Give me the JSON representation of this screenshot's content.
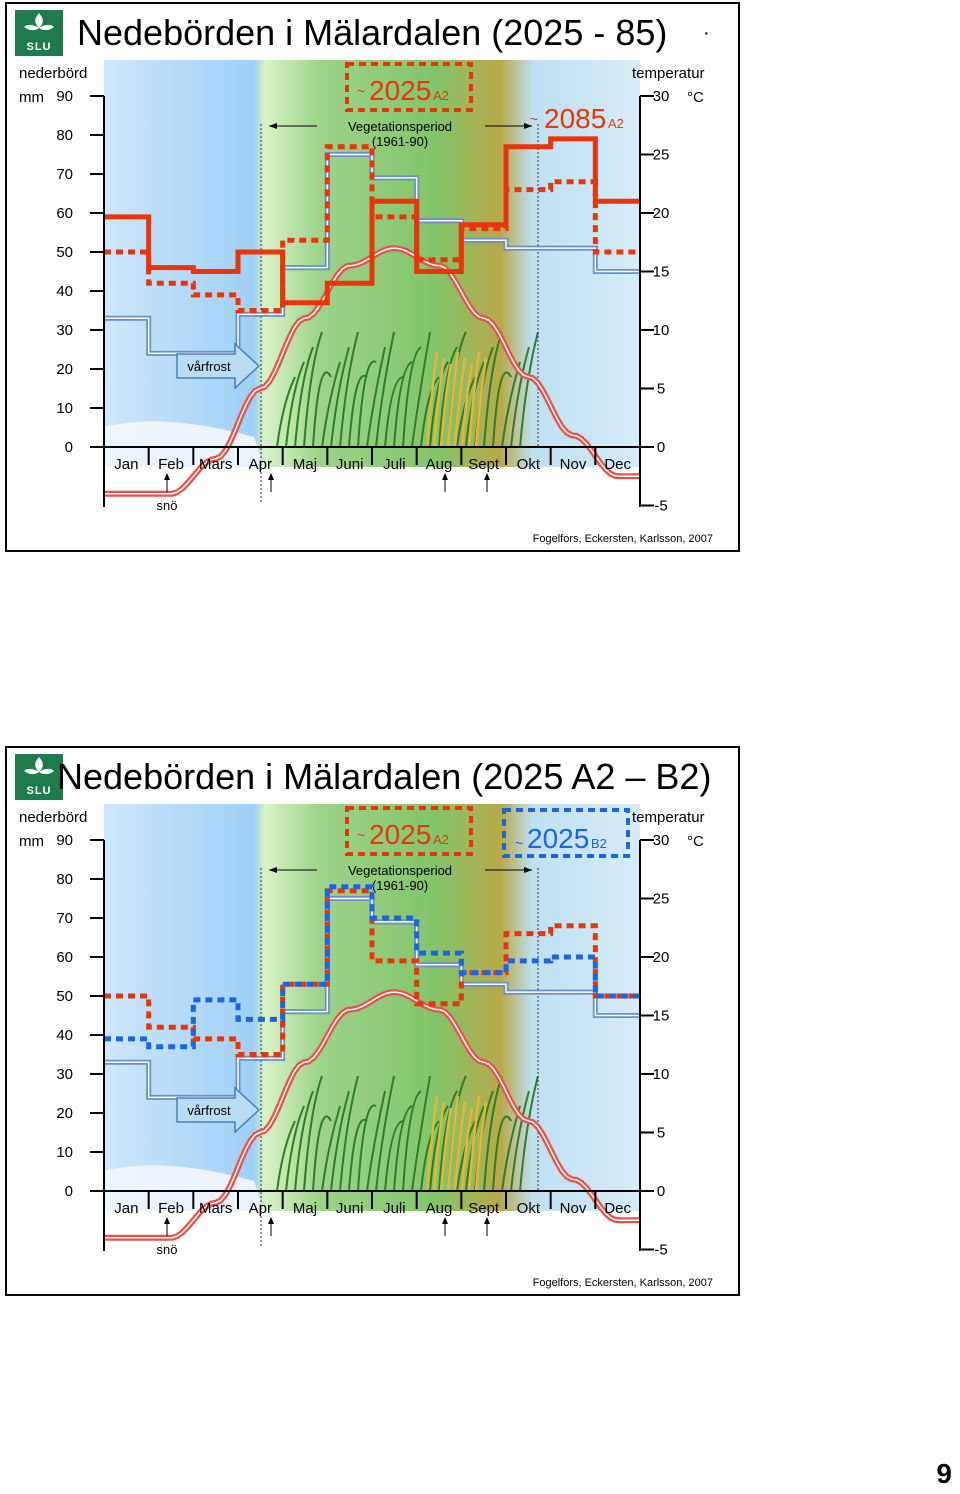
{
  "page": {
    "number": "9"
  },
  "common": {
    "left_axis_title": "nederbörd",
    "left_axis_unit": "mm",
    "right_axis_title": "temperatur",
    "right_axis_unit": "°C",
    "left_ticks": [
      "90",
      "80",
      "70",
      "60",
      "50",
      "40",
      "30",
      "20",
      "10",
      "0"
    ],
    "right_ticks": [
      "30",
      "25",
      "20",
      "15",
      "10",
      "5",
      "0",
      "-5"
    ],
    "months": [
      "Jan",
      "Feb",
      "Mars",
      "Apr",
      "Maj",
      "Juni",
      "Juli",
      "Aug",
      "Sept",
      "Okt",
      "Nov",
      "Dec"
    ],
    "veg_label_1": "Vegetationsperiod",
    "veg_label_2": "(1961-90)",
    "vårfrost": "vårfrost",
    "snö": "snö",
    "credit": "Fogelfors, Eckersten, Karlsson, 2007",
    "colors": {
      "baseline": "#6a8fc4",
      "red": "#e8350b",
      "blue": "#1a66e0",
      "temp": "#e5534b"
    }
  },
  "slides": [
    {
      "title": "Nedebörden i Mälardalen (2025 - 85)",
      "label_a": "2025",
      "label_a_sub": "A2",
      "label_a_tilde": "~",
      "label_b": "2085",
      "label_b_sub": "A2",
      "label_b_tilde": "~",
      "dot": "·"
    },
    {
      "title": "Nedebörden i Mälardalen (2025 A2 – B2)",
      "label_a": "2025",
      "label_a_sub": "A2",
      "label_a_tilde": "~",
      "label_b": "2025",
      "label_b_sub": "B2",
      "label_b_tilde": "~"
    }
  ],
  "chart_data": [
    {
      "type": "line",
      "title": "Nedebörden i Mälardalen (2025 - 85)",
      "x": [
        "Jan",
        "Feb",
        "Mars",
        "Apr",
        "Maj",
        "Juni",
        "Juli",
        "Aug",
        "Sept",
        "Okt",
        "Nov",
        "Dec"
      ],
      "ylabel": "nederbörd mm",
      "ylim": [
        0,
        90
      ],
      "y2label": "temperatur °C",
      "y2lim": [
        -5,
        30
      ],
      "series": [
        {
          "name": "",
          "style": "step-baseline",
          "values": [
            33,
            24,
            24,
            34,
            46,
            75,
            69,
            58,
            53,
            51,
            51,
            45
          ]
        },
        {
          "name": "2025 A2",
          "style": "step-dashed-red",
          "values": [
            50,
            42,
            39,
            35,
            53,
            77,
            59,
            48,
            56,
            66,
            68,
            50
          ]
        },
        {
          "name": "2085 A2",
          "style": "step-solid-red",
          "values": [
            59,
            46,
            45,
            50,
            37,
            42,
            63,
            45,
            57,
            77,
            79,
            63
          ]
        },
        {
          "name": "",
          "style": "temperature-curve",
          "axis": "y2",
          "values": [
            -4,
            -4,
            -1,
            5,
            11,
            15.5,
            17,
            15.5,
            11,
            6,
            1,
            -2.5
          ]
        }
      ]
    },
    {
      "type": "line",
      "title": "Nedebörden i Mälardalen (2025 A2 – B2)",
      "x": [
        "Jan",
        "Feb",
        "Mars",
        "Apr",
        "Maj",
        "Juni",
        "Juli",
        "Aug",
        "Sept",
        "Okt",
        "Nov",
        "Dec"
      ],
      "ylabel": "nederbörd mm",
      "ylim": [
        0,
        90
      ],
      "y2label": "temperatur °C",
      "y2lim": [
        -5,
        30
      ],
      "series": [
        {
          "name": "",
          "style": "step-baseline",
          "values": [
            33,
            24,
            24,
            34,
            46,
            75,
            69,
            58,
            53,
            51,
            51,
            45
          ]
        },
        {
          "name": "2025 A2",
          "style": "step-dashed-red",
          "values": [
            50,
            42,
            39,
            35,
            53,
            77,
            59,
            48,
            56,
            66,
            68,
            50
          ]
        },
        {
          "name": "2025 B2",
          "style": "step-dashed-blue",
          "values": [
            39,
            37,
            49,
            44,
            53,
            78,
            70,
            61,
            56,
            59,
            60,
            50
          ]
        },
        {
          "name": "",
          "style": "temperature-curve",
          "axis": "y2",
          "values": [
            -4,
            -4,
            -1,
            5,
            11,
            15.5,
            17,
            15.5,
            11,
            6,
            1,
            -2.5
          ]
        }
      ]
    }
  ]
}
